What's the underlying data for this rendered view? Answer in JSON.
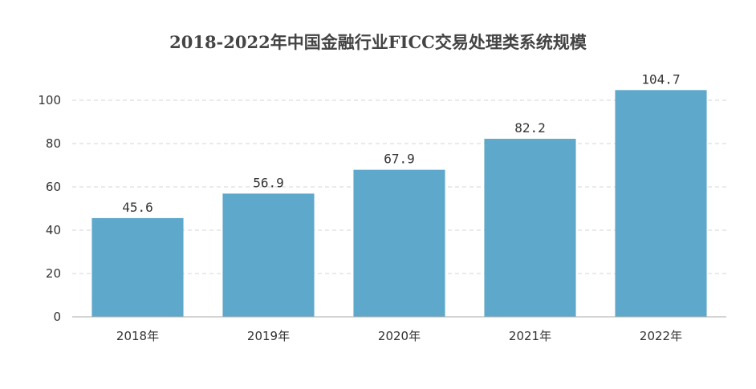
{
  "chart_data": {
    "type": "bar",
    "title": "2018-2022年中国金融行业FICC交易处理类系统规模",
    "categories": [
      "2018年",
      "2019年",
      "2020年",
      "2021年",
      "2022年"
    ],
    "values": [
      45.6,
      56.9,
      67.9,
      82.2,
      104.7
    ],
    "value_labels": [
      "45.6",
      "56.9",
      "67.9",
      "82.2",
      "104.7"
    ],
    "xlabel": "",
    "ylabel": "",
    "ylim": [
      0,
      100
    ],
    "yticks": [
      "0",
      "20",
      "40",
      "60",
      "80",
      "100"
    ],
    "grid": true,
    "legend": "none",
    "bar_color": "#5ea8cb"
  }
}
